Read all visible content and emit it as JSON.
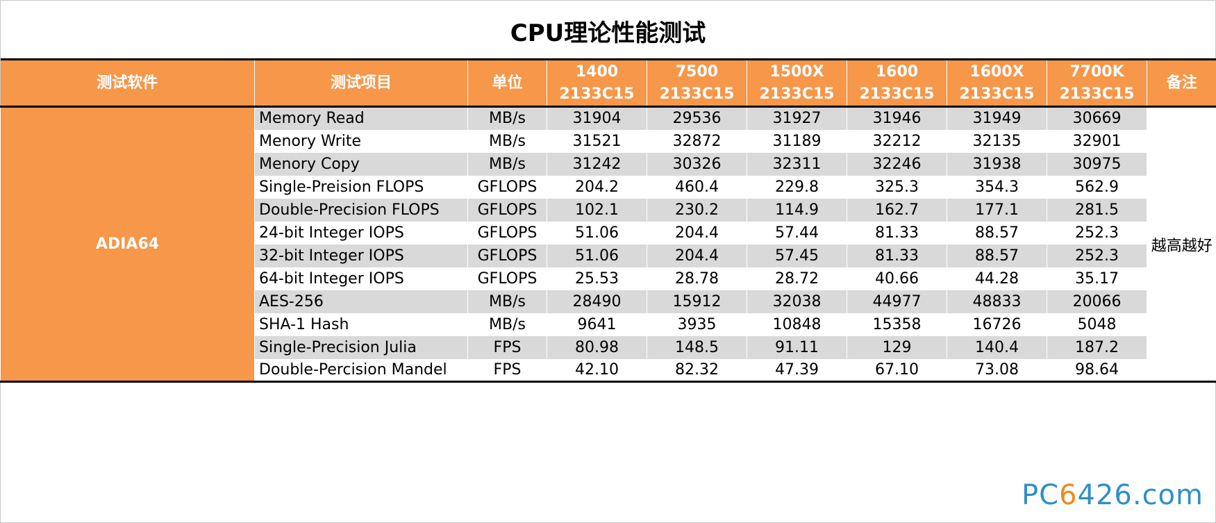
{
  "title": "CPU理论性能测试",
  "chart_data": {
    "type": "table",
    "title": "CPU理论性能测试",
    "headers": {
      "software": "测试软件",
      "item": "测试项目",
      "unit": "单位",
      "note": "备注",
      "cpus": [
        {
          "model": "1400",
          "memory": "2133C15"
        },
        {
          "model": "7500",
          "memory": "2133C15"
        },
        {
          "model": "1500X",
          "memory": "2133C15"
        },
        {
          "model": "1600",
          "memory": "2133C15"
        },
        {
          "model": "1600X",
          "memory": "2133C15"
        },
        {
          "model": "7700K",
          "memory": "2133C15"
        }
      ]
    },
    "software": "ADIA64",
    "note": "越高越好",
    "rows": [
      {
        "item": "Memory Read",
        "unit": "MB/s",
        "values": [
          "31904",
          "29536",
          "31927",
          "31946",
          "31949",
          "30669"
        ]
      },
      {
        "item": "Menory Write",
        "unit": "MB/s",
        "values": [
          "31521",
          "32872",
          "31189",
          "32212",
          "32135",
          "32901"
        ]
      },
      {
        "item": "Menory Copy",
        "unit": "MB/s",
        "values": [
          "31242",
          "30326",
          "32311",
          "32246",
          "31938",
          "30975"
        ]
      },
      {
        "item": "Single-Preision FLOPS",
        "unit": "GFLOPS",
        "values": [
          "204.2",
          "460.4",
          "229.8",
          "325.3",
          "354.3",
          "562.9"
        ]
      },
      {
        "item": "Double-Precision FLOPS",
        "unit": "GFLOPS",
        "values": [
          "102.1",
          "230.2",
          "114.9",
          "162.7",
          "177.1",
          "281.5"
        ]
      },
      {
        "item": "24-bit Integer IOPS",
        "unit": "GFLOPS",
        "values": [
          "51.06",
          "204.4",
          "57.44",
          "81.33",
          "88.57",
          "252.3"
        ]
      },
      {
        "item": "32-bit Integer IOPS",
        "unit": "GFLOPS",
        "values": [
          "51.06",
          "204.4",
          "57.45",
          "81.33",
          "88.57",
          "252.3"
        ]
      },
      {
        "item": "64-bit Integer IOPS",
        "unit": "GFLOPS",
        "values": [
          "25.53",
          "28.78",
          "28.72",
          "40.66",
          "44.28",
          "35.17"
        ]
      },
      {
        "item": "AES-256",
        "unit": "MB/s",
        "values": [
          "28490",
          "15912",
          "32038",
          "44977",
          "48833",
          "20066"
        ]
      },
      {
        "item": "SHA-1 Hash",
        "unit": "MB/s",
        "values": [
          "9641",
          "3935",
          "10848",
          "15358",
          "16726",
          "5048"
        ]
      },
      {
        "item": "Single-Precision Julia",
        "unit": "FPS",
        "values": [
          "80.98",
          "148.5",
          "91.11",
          "129",
          "140.4",
          "187.2"
        ]
      },
      {
        "item": "Double-Percision Mandel",
        "unit": "FPS",
        "values": [
          "42.10",
          "82.32",
          "47.39",
          "67.10",
          "73.08",
          "98.64"
        ]
      }
    ]
  },
  "watermark": {
    "main": "PC",
    "accent": "6",
    "rest": "426.com"
  },
  "colors": {
    "header_bg": "#f6974a",
    "shade": "#d9d9d9",
    "logo": "#2f8fc4"
  }
}
